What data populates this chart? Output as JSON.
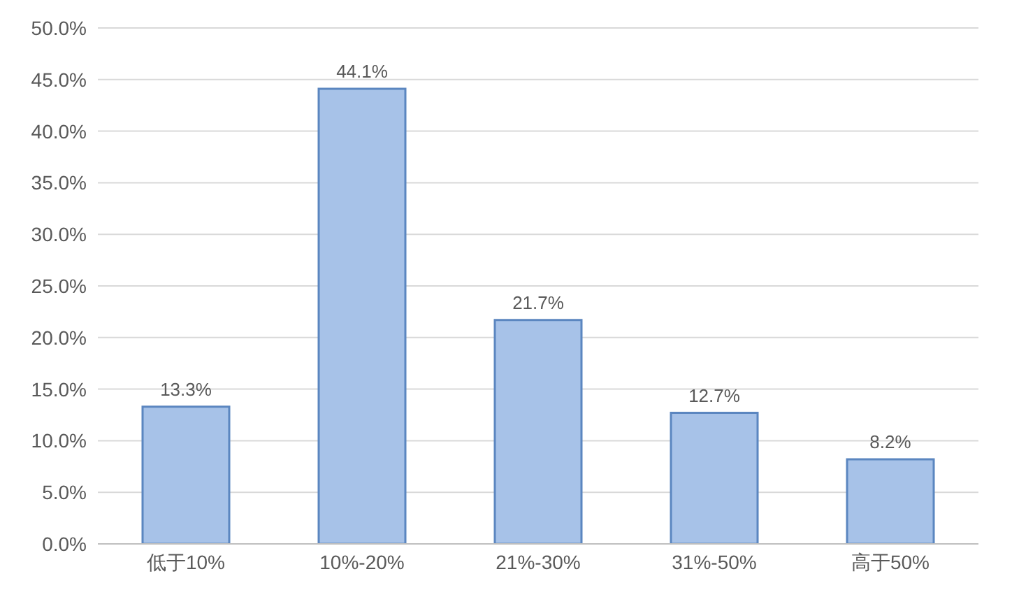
{
  "chart_data": {
    "type": "bar",
    "categories": [
      "低于10%",
      "10%-20%",
      "21%-30%",
      "31%-50%",
      "高于50%"
    ],
    "values": [
      13.3,
      44.1,
      21.7,
      12.7,
      8.2
    ],
    "value_labels": [
      "13.3%",
      "44.1%",
      "21.7%",
      "12.7%",
      "8.2%"
    ],
    "color": "#a7c2e8",
    "ylim": [
      0,
      50
    ],
    "yticks": [
      {
        "value": 0,
        "label": "0.0%"
      },
      {
        "value": 5,
        "label": "5.0%"
      },
      {
        "value": 10,
        "label": "10.0%"
      },
      {
        "value": 15,
        "label": "15.0%"
      },
      {
        "value": 20,
        "label": "20.0%"
      },
      {
        "value": 25,
        "label": "25.0%"
      },
      {
        "value": 30,
        "label": "30.0%"
      },
      {
        "value": 35,
        "label": "35.0%"
      },
      {
        "value": 40,
        "label": "40.0%"
      },
      {
        "value": 45,
        "label": "45.0%"
      },
      {
        "value": 50,
        "label": "50.0%"
      }
    ],
    "grid": "y"
  }
}
